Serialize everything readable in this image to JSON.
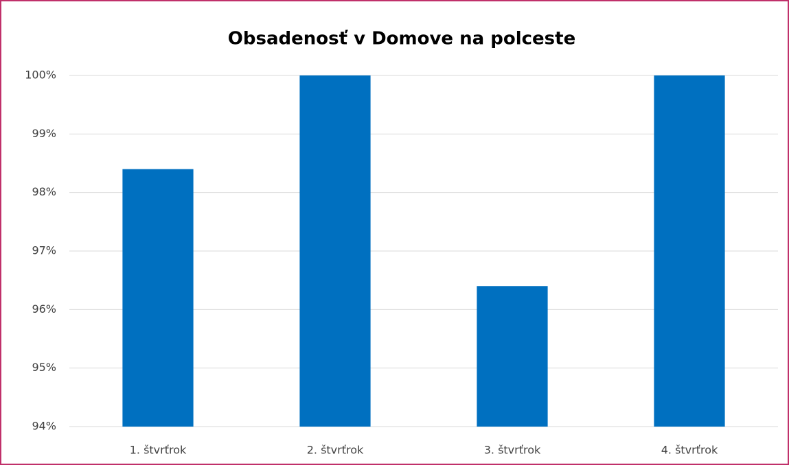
{
  "chart_data": {
    "type": "bar",
    "title": "Obsadenosť v Domove na polceste",
    "categories": [
      "1. štvrťrok",
      "2. štvrťrok",
      "3. štvrťrok",
      "4. štvrťrok"
    ],
    "values": [
      98.4,
      100,
      96.4,
      100
    ],
    "color": "#0070c0",
    "ylim": [
      94,
      100
    ],
    "yticks": [
      {
        "value": 94,
        "label": "94%"
      },
      {
        "value": 95,
        "label": "95%"
      },
      {
        "value": 96,
        "label": "96%"
      },
      {
        "value": 97,
        "label": "97%"
      },
      {
        "value": 98,
        "label": "98%"
      },
      {
        "value": 99,
        "label": "99%"
      },
      {
        "value": 100,
        "label": "100%"
      }
    ],
    "grid": true
  }
}
